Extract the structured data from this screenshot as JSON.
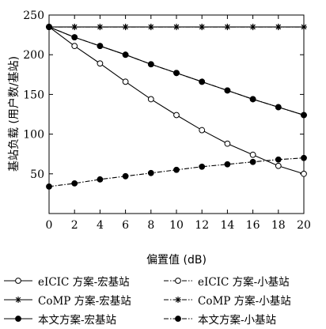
{
  "chart_data": {
    "type": "line",
    "title": "",
    "xlabel": "偏置值 (dB)",
    "ylabel": "基站负载 (用户数/基站)",
    "xlim": [
      0,
      20
    ],
    "ylim": [
      0,
      250
    ],
    "x_ticks": [
      0,
      2,
      4,
      6,
      8,
      10,
      12,
      14,
      16,
      18,
      20
    ],
    "y_ticks": [
      50,
      100,
      150,
      200,
      250
    ],
    "grid": false,
    "legend_position": "bottom",
    "x": [
      0,
      2,
      4,
      6,
      8,
      10,
      12,
      14,
      16,
      18,
      20
    ],
    "series": [
      {
        "name": "eICIC 方案-宏基站",
        "marker": "circle-open",
        "line": "solid",
        "values": [
          235,
          211,
          189,
          166,
          144,
          124,
          105,
          88,
          74,
          60,
          50
        ]
      },
      {
        "name": "eICIC 方案-小基站",
        "marker": "circle-open",
        "line": "dashdot",
        "values": [
          235,
          222,
          211,
          200,
          188,
          177,
          166,
          155,
          144,
          134,
          124
        ]
      },
      {
        "name": "CoMP 方案-宏基站",
        "marker": "star",
        "line": "solid",
        "values": [
          235,
          235,
          235,
          235,
          235,
          235,
          235,
          235,
          235,
          235,
          235
        ]
      },
      {
        "name": "CoMP 方案-小基站",
        "marker": "star",
        "line": "dashdot",
        "values": [
          235,
          235,
          235,
          235,
          235,
          235,
          235,
          235,
          235,
          235,
          235
        ]
      },
      {
        "name": "本文方案-宏基站",
        "marker": "circle-filled",
        "line": "solid",
        "values": [
          235,
          222,
          211,
          200,
          188,
          177,
          166,
          155,
          144,
          134,
          124
        ]
      },
      {
        "name": "本文方案-小基站",
        "marker": "circle-filled",
        "line": "dashdot",
        "values": [
          34,
          38,
          43,
          47,
          51,
          55,
          59,
          62,
          65,
          68,
          70
        ]
      }
    ]
  },
  "legend_items": [
    {
      "label": "eICIC 方案-宏基站",
      "marker": "circle-open",
      "line": "solid"
    },
    {
      "label": "eICIC 方案-小基站",
      "marker": "circle-open",
      "line": "dashdot"
    },
    {
      "label": "CoMP 方案-宏基站",
      "marker": "star",
      "line": "solid"
    },
    {
      "label": "CoMP 方案-小基站",
      "marker": "star",
      "line": "dashdot"
    },
    {
      "label": "本文方案-宏基站",
      "marker": "circle-filled",
      "line": "solid"
    },
    {
      "label": "本文方案-小基站",
      "marker": "circle-filled",
      "line": "dashdot"
    }
  ]
}
